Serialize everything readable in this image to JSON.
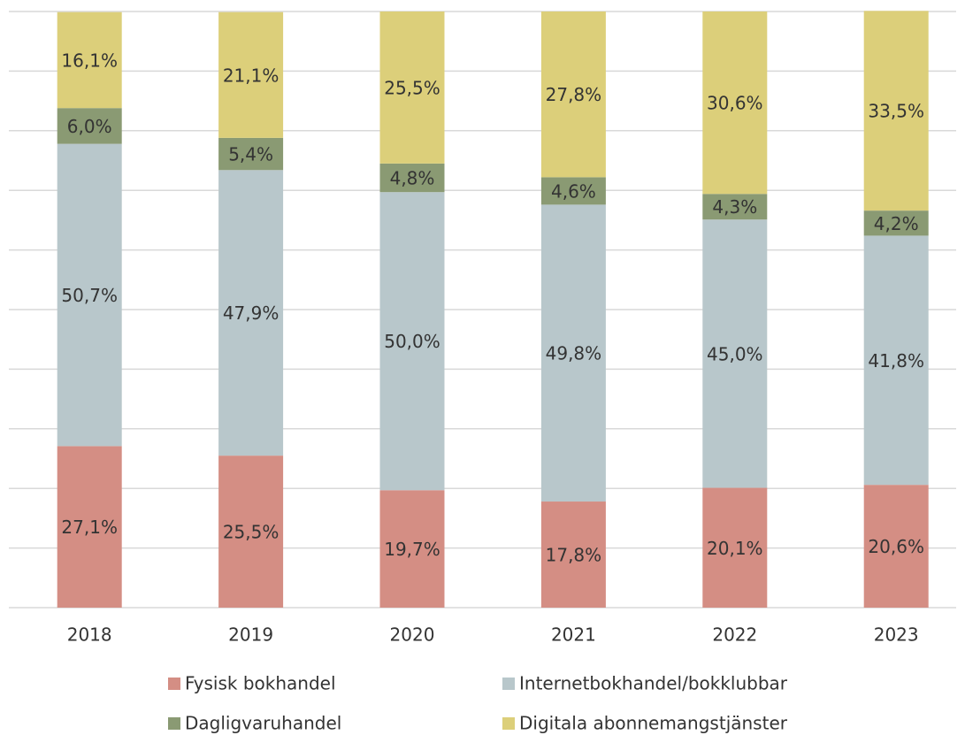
{
  "chart_data": {
    "type": "stacked_bar",
    "categories": [
      "2018",
      "2019",
      "2020",
      "2021",
      "2022",
      "2023"
    ],
    "series": [
      {
        "name": "Fysisk bokhandel",
        "color": "#d48e84",
        "values": [
          27.1,
          25.5,
          19.7,
          17.8,
          20.1,
          20.6
        ],
        "value_labels": [
          "27,1%",
          "25,5%",
          "19,7%",
          "17,8%",
          "20,1%",
          "20,6%"
        ]
      },
      {
        "name": "Internetbokhandel/bokklubbar",
        "color": "#b8c7cb",
        "values": [
          50.7,
          47.9,
          50.0,
          49.8,
          45.0,
          41.8
        ],
        "value_labels": [
          "50,7%",
          "47,9%",
          "50,0%",
          "49,8%",
          "45,0%",
          "41,8%"
        ]
      },
      {
        "name": "Dagligvaruhandel",
        "color": "#8a9a73",
        "values": [
          6.0,
          5.4,
          4.8,
          4.6,
          4.3,
          4.2
        ],
        "value_labels": [
          "6,0%",
          "5,4%",
          "4,8%",
          "4,6%",
          "4,3%",
          "4,2%"
        ]
      },
      {
        "name": "Digitala abonnemangstjänster",
        "color": "#dccf7a",
        "values": [
          16.1,
          21.1,
          25.5,
          27.8,
          30.6,
          33.5
        ],
        "value_labels": [
          "16,1%",
          "21,1%",
          "25,5%",
          "27,8%",
          "30,6%",
          "33,5%"
        ]
      }
    ],
    "ylim": [
      0,
      100
    ],
    "yticks": [
      0,
      10,
      20,
      30,
      40,
      50,
      60,
      70,
      80,
      90,
      100
    ],
    "grid": true
  }
}
